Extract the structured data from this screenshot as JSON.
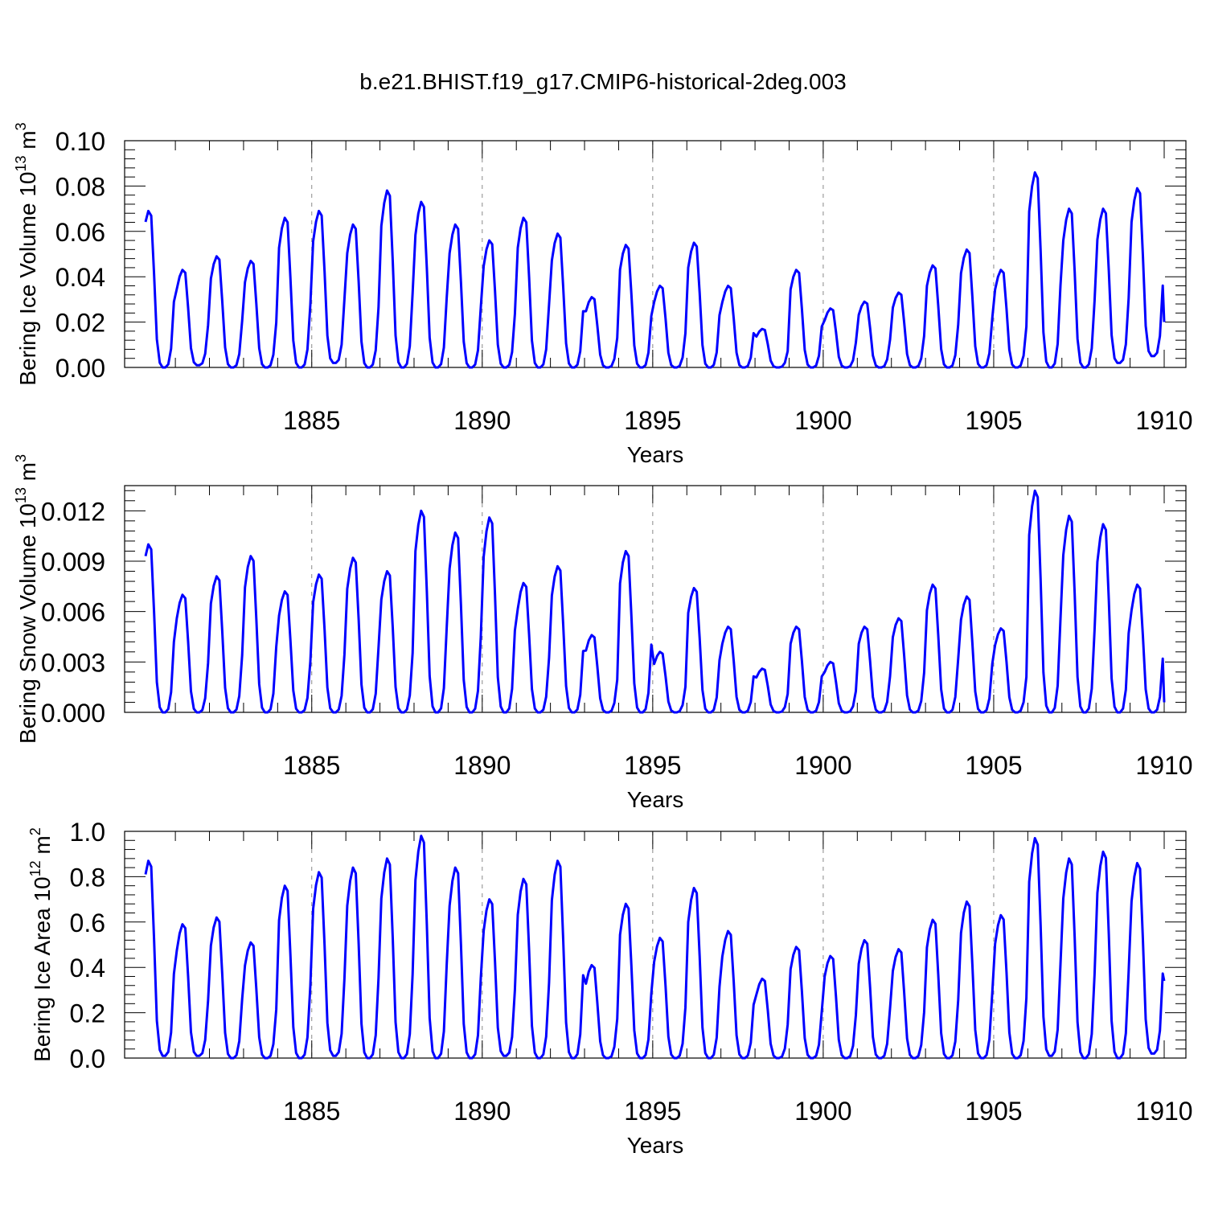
{
  "title": "b.e21.BHIST.f19_g17.CMIP6-historical-2deg.003",
  "colors": {
    "series": "#0000ff",
    "axis": "#000000",
    "grid": "#888888"
  },
  "chart_data": [
    {
      "type": "line",
      "name": "ice-volume",
      "ylabel_main": "Bering Ice Volume 10",
      "ylabel_sup1": "13",
      "ylabel_mid": " m",
      "ylabel_sup2": "3",
      "xlabel": "Years",
      "xlim": [
        1880.125,
        1910
      ],
      "ylim": [
        0,
        0.1
      ],
      "ytick_values": [
        0,
        0.02,
        0.04,
        0.06,
        0.08,
        0.1
      ],
      "ytick_labels": [
        "0.00",
        "0.02",
        "0.04",
        "0.06",
        "0.08",
        "0.10"
      ],
      "xtick_values": [
        1885,
        1890,
        1895,
        1900,
        1905,
        1910
      ],
      "xtick_labels": [
        "1885",
        "1890",
        "1895",
        "1900",
        "1905",
        "1910"
      ],
      "grid_x": [
        1885,
        1890,
        1895,
        1900,
        1905
      ],
      "series_name": "Bering Ice Volume",
      "year_peaks": [
        0.069,
        0.043,
        0.049,
        0.047,
        0.066,
        0.069,
        0.063,
        0.078,
        0.073,
        0.063,
        0.056,
        0.066,
        0.059,
        0.031,
        0.054,
        0.036,
        0.055,
        0.036,
        0.017,
        0.043,
        0.026,
        0.029,
        0.033,
        0.045,
        0.052,
        0.043,
        0.086,
        0.07,
        0.07,
        0.079
      ],
      "year_minima": [
        0.0,
        0.001,
        0.0,
        0.0,
        0.0,
        0.002,
        0.0,
        0.0,
        0.0,
        0.0,
        0.0,
        0.0,
        0.0,
        0.0,
        0.0,
        0.0,
        0.0,
        0.0,
        0.0,
        0.0,
        0.0,
        0.0,
        0.0,
        0.0,
        0.0,
        0.0,
        0.0,
        0.0,
        0.002,
        0.005
      ],
      "end_value": 0.02
    },
    {
      "type": "line",
      "name": "snow-volume",
      "ylabel_main": "Bering Snow Volume 10",
      "ylabel_sup1": "13",
      "ylabel_mid": " m",
      "ylabel_sup2": "3",
      "xlabel": "Years",
      "xlim": [
        1880.125,
        1910
      ],
      "ylim": [
        0,
        0.0135
      ],
      "ytick_values": [
        0,
        0.003,
        0.006,
        0.009,
        0.012
      ],
      "ytick_labels": [
        "0.000",
        "0.003",
        "0.006",
        "0.009",
        "0.012"
      ],
      "xtick_values": [
        1885,
        1890,
        1895,
        1900,
        1905,
        1910
      ],
      "xtick_labels": [
        "1885",
        "1890",
        "1895",
        "1900",
        "1905",
        "1910"
      ],
      "grid_x": [
        1885,
        1890,
        1895,
        1900,
        1905
      ],
      "series_name": "Bering Snow Volume",
      "year_peaks": [
        0.01,
        0.007,
        0.0081,
        0.0093,
        0.0072,
        0.0082,
        0.0092,
        0.0084,
        0.012,
        0.0107,
        0.0116,
        0.0077,
        0.0087,
        0.0046,
        0.0096,
        0.0036,
        0.0074,
        0.0051,
        0.0026,
        0.0051,
        0.003,
        0.0051,
        0.0056,
        0.0076,
        0.0069,
        0.005,
        0.0132,
        0.0117,
        0.0112,
        0.0076
      ],
      "year_minima": [
        0,
        0,
        0,
        0,
        0,
        0,
        0,
        0,
        0,
        0,
        0,
        0,
        0,
        0,
        0,
        0,
        0,
        0,
        0,
        0,
        0,
        0,
        0,
        0,
        0,
        0,
        0,
        0,
        0,
        0
      ],
      "end_value": 0.0006
    },
    {
      "type": "line",
      "name": "ice-area",
      "ylabel_main": "Bering Ice Area 10",
      "ylabel_sup1": "12",
      "ylabel_mid": " m",
      "ylabel_sup2": "2",
      "xlabel": "Years",
      "xlim": [
        1880.125,
        1910
      ],
      "ylim": [
        0,
        1.0
      ],
      "ytick_values": [
        0,
        0.2,
        0.4,
        0.6,
        0.8,
        1.0
      ],
      "ytick_labels": [
        "0.0",
        "0.2",
        "0.4",
        "0.6",
        "0.8",
        "1.0"
      ],
      "xtick_values": [
        1885,
        1890,
        1895,
        1900,
        1905,
        1910
      ],
      "xtick_labels": [
        "1885",
        "1890",
        "1895",
        "1900",
        "1905",
        "1910"
      ],
      "grid_x": [
        1885,
        1890,
        1895,
        1900,
        1905
      ],
      "series_name": "Bering Ice Area",
      "year_peaks": [
        0.87,
        0.59,
        0.62,
        0.51,
        0.76,
        0.82,
        0.84,
        0.88,
        0.98,
        0.84,
        0.7,
        0.79,
        0.87,
        0.41,
        0.68,
        0.53,
        0.75,
        0.56,
        0.35,
        0.49,
        0.45,
        0.52,
        0.48,
        0.61,
        0.69,
        0.63,
        0.97,
        0.88,
        0.91,
        0.86
      ],
      "year_minima": [
        0.01,
        0.01,
        0.0,
        0.0,
        0.0,
        0.01,
        0.0,
        0.0,
        0.0,
        0.0,
        0.01,
        0.0,
        0.0,
        0.0,
        0.0,
        0.0,
        0.0,
        0.0,
        0.0,
        0.0,
        0.0,
        0.0,
        0.0,
        0.0,
        0.0,
        0.0,
        0.01,
        0.0,
        0.0,
        0.02
      ],
      "end_value": 0.34
    }
  ]
}
